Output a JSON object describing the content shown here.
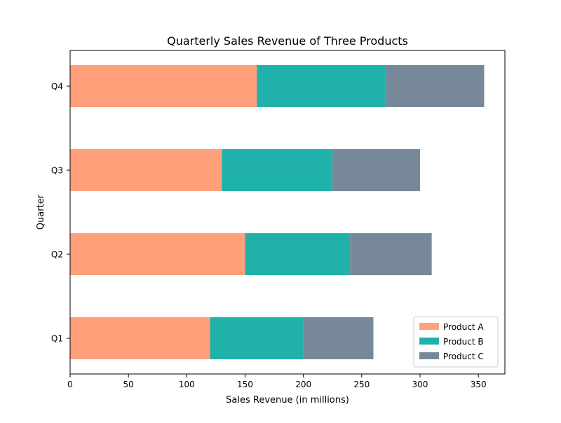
{
  "chart_data": {
    "type": "bar",
    "orientation": "horizontal",
    "stacked": true,
    "title": "Quarterly Sales Revenue of Three Products",
    "xlabel": "Sales Revenue (in millions)",
    "ylabel": "Quarter",
    "categories": [
      "Q1",
      "Q2",
      "Q3",
      "Q4"
    ],
    "series": [
      {
        "name": "Product A",
        "values": [
          120,
          150,
          130,
          160
        ],
        "color": "#FFA07A"
      },
      {
        "name": "Product B",
        "values": [
          80,
          90,
          95,
          110
        ],
        "color": "#20B2AA"
      },
      {
        "name": "Product C",
        "values": [
          60,
          70,
          75,
          85
        ],
        "color": "#778899"
      }
    ],
    "xlim": [
      0,
      372.75
    ],
    "xticks": [
      0,
      50,
      100,
      150,
      200,
      250,
      300,
      350
    ],
    "grid": false,
    "legend": {
      "position": "lower-right"
    }
  }
}
